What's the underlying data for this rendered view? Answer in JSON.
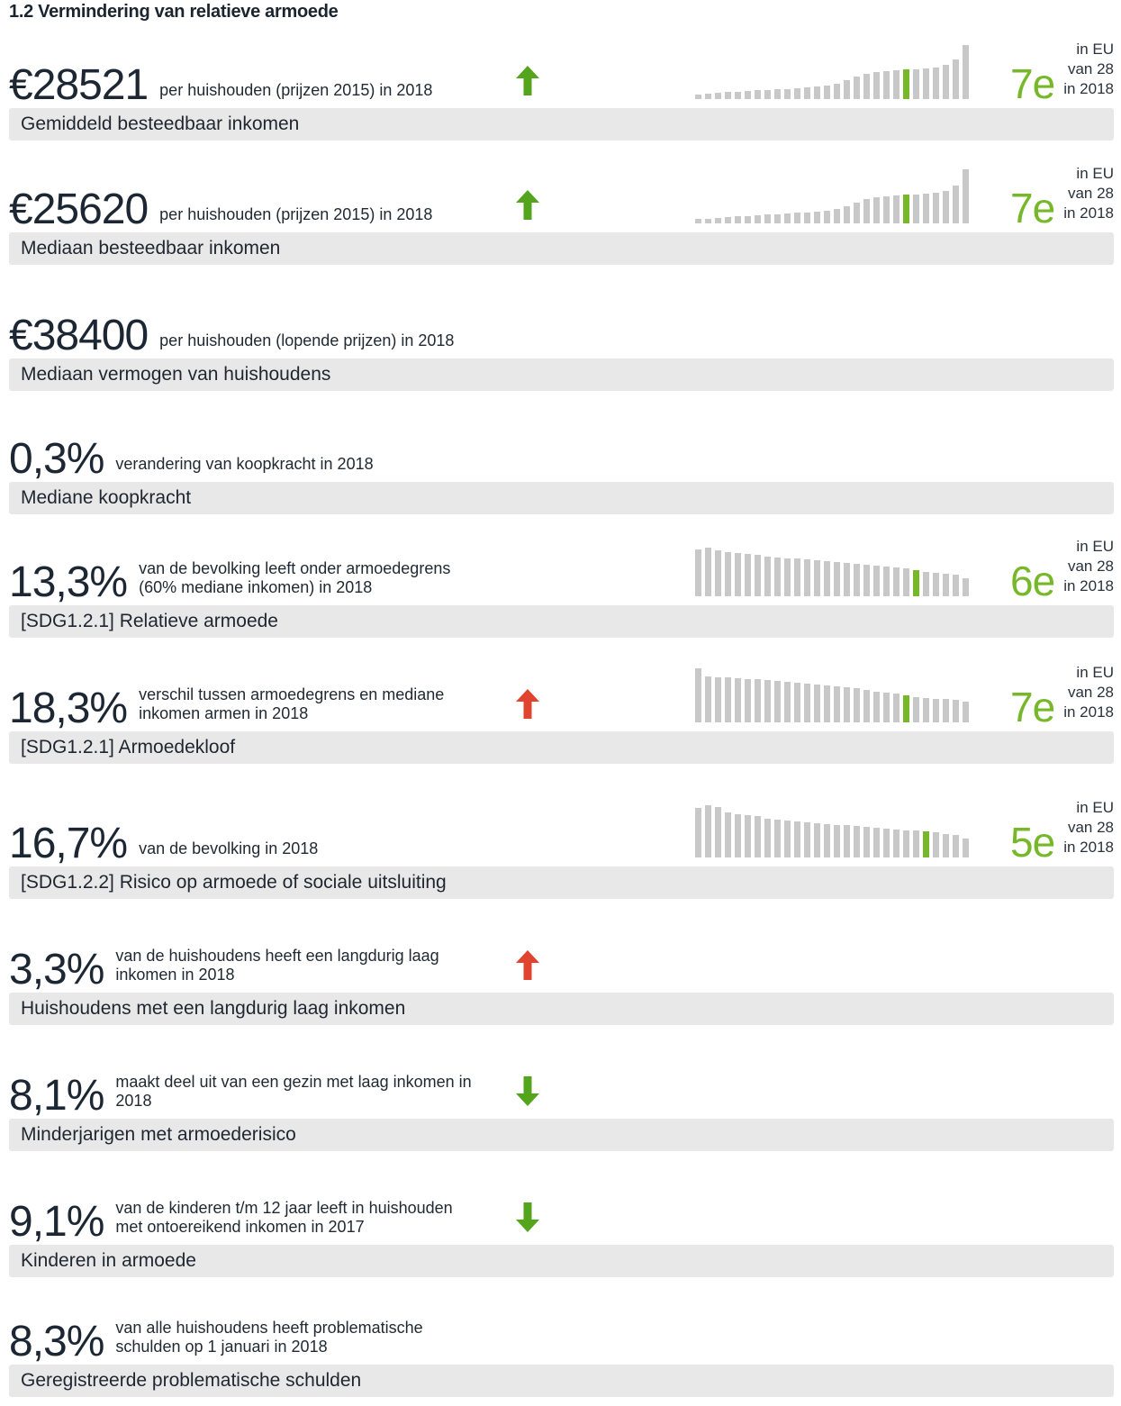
{
  "page_title": "1.2 Vermindering van relatieve armoede",
  "rank_caption": [
    "in EU",
    "van 28",
    "in 2018"
  ],
  "colors": {
    "green_trend": "#55a41d",
    "green_accent": "#76b82a",
    "red_trend": "#e0432e",
    "bar_gray": "#c8c8c8",
    "label_bg": "#e8e8e8",
    "text_dark": "#1c2733"
  },
  "rows": [
    {
      "value": "€28521",
      "desc_lines": [
        "per huishouden (prijzen 2015) in 2018"
      ],
      "trend": {
        "dir": "up",
        "color": "green"
      },
      "rank": "7e",
      "chart": {
        "highlight_index": 21,
        "heights": [
          5,
          6,
          7,
          8,
          8,
          9,
          10,
          10,
          11,
          11,
          12,
          13,
          14,
          15,
          17,
          21,
          25,
          28,
          30,
          31,
          32,
          33,
          33,
          34,
          35,
          38,
          44,
          60
        ]
      },
      "label": "Gemiddeld besteedbaar inkomen"
    },
    {
      "value": "€25620",
      "desc_lines": [
        "per huishouden (prijzen 2015) in 2018"
      ],
      "trend": {
        "dir": "up",
        "color": "green"
      },
      "rank": "7e",
      "chart": {
        "highlight_index": 21,
        "heights": [
          5,
          5,
          6,
          7,
          8,
          8,
          9,
          10,
          10,
          11,
          12,
          12,
          13,
          14,
          16,
          19,
          23,
          27,
          29,
          30,
          31,
          32,
          32,
          33,
          34,
          36,
          42,
          60
        ]
      },
      "label": "Mediaan besteedbaar inkomen"
    },
    {
      "value": "€38400",
      "desc_lines": [
        "per huishouden (lopende prijzen) in 2018"
      ],
      "trend": null,
      "rank": null,
      "chart": null,
      "label": "Mediaan vermogen van huishoudens"
    },
    {
      "value": "0,3%",
      "desc_lines": [
        "verandering van koopkracht in 2018"
      ],
      "trend": null,
      "rank": null,
      "chart": null,
      "label": "Mediane koopkracht"
    },
    {
      "value": "13,3%",
      "desc_lines": [
        "van de bevolking leeft onder armoedegrens",
        "(60% mediane inkomen) in 2018"
      ],
      "trend": null,
      "rank": "6e",
      "chart": {
        "highlight_index": 22,
        "heights": [
          52,
          54,
          51,
          49,
          48,
          47,
          46,
          44,
          43,
          42,
          42,
          41,
          40,
          39,
          38,
          37,
          36,
          35,
          34,
          33,
          32,
          31,
          29,
          27,
          26,
          25,
          24,
          20
        ]
      },
      "label": "[SDG1.2.1] Relatieve armoede"
    },
    {
      "value": "18,3%",
      "desc_lines": [
        "verschil tussen armoedegrens en mediane",
        "inkomen armen in 2018"
      ],
      "trend": {
        "dir": "up",
        "color": "red"
      },
      "rank": "7e",
      "chart": {
        "highlight_index": 21,
        "heights": [
          60,
          51,
          50,
          50,
          49,
          48,
          48,
          47,
          46,
          45,
          44,
          43,
          42,
          41,
          40,
          39,
          38,
          36,
          34,
          33,
          32,
          30,
          28,
          27,
          26,
          26,
          25,
          23
        ]
      },
      "label": "[SDG1.2.1] Armoedekloof"
    },
    {
      "value": "16,7%",
      "desc_lines": [
        "van de bevolking in 2018"
      ],
      "trend": null,
      "rank": "5e",
      "chart": {
        "highlight_index": 23,
        "heights": [
          55,
          58,
          56,
          50,
          48,
          47,
          46,
          43,
          42,
          41,
          40,
          39,
          38,
          37,
          36,
          36,
          35,
          34,
          33,
          32,
          31,
          30,
          30,
          29,
          28,
          26,
          25,
          21
        ]
      },
      "label": "[SDG1.2.2] Risico op armoede of sociale uitsluiting"
    },
    {
      "value": "3,3%",
      "desc_lines": [
        "van de huishoudens heeft een langdurig laag",
        "inkomen in 2018"
      ],
      "trend": {
        "dir": "up",
        "color": "red"
      },
      "rank": null,
      "chart": null,
      "label": "Huishoudens met een langdurig laag inkomen"
    },
    {
      "value": "8,1%",
      "desc_lines": [
        "maakt deel uit van een gezin met laag inkomen in",
        "2018"
      ],
      "trend": {
        "dir": "down",
        "color": "green"
      },
      "rank": null,
      "chart": null,
      "label": "Minderjarigen met armoederisico"
    },
    {
      "value": "9,1%",
      "desc_lines": [
        "van de kinderen t/m 12 jaar leeft in huishouden",
        "met ontoereikend inkomen in 2017"
      ],
      "trend": {
        "dir": "down",
        "color": "green"
      },
      "rank": null,
      "chart": null,
      "label": "Kinderen in armoede"
    },
    {
      "value": "8,3%",
      "desc_lines": [
        "van alle huishoudens heeft problematische",
        "schulden op 1 januari in 2018"
      ],
      "trend": null,
      "rank": null,
      "chart": null,
      "label": "Geregistreerde problematische schulden"
    }
  ]
}
